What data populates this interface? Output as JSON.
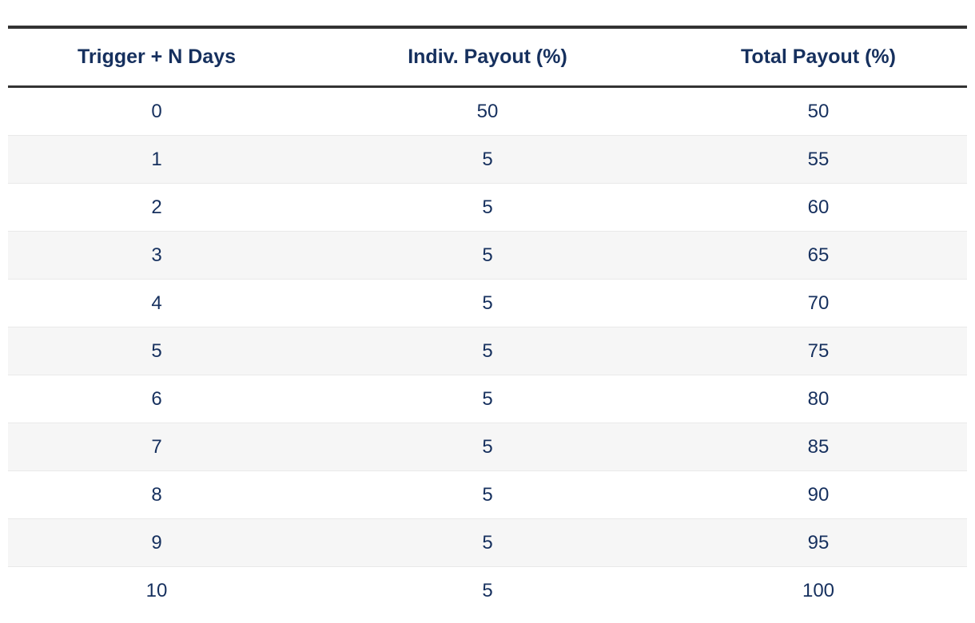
{
  "chart_data": {
    "type": "table",
    "title": "",
    "columns": [
      "Trigger + N Days",
      "Indiv. Payout (%)",
      "Total Payout (%)"
    ],
    "rows": [
      [
        "0",
        "50",
        "50"
      ],
      [
        "1",
        "5",
        "55"
      ],
      [
        "2",
        "5",
        "60"
      ],
      [
        "3",
        "5",
        "65"
      ],
      [
        "4",
        "5",
        "70"
      ],
      [
        "5",
        "5",
        "75"
      ],
      [
        "6",
        "5",
        "80"
      ],
      [
        "7",
        "5",
        "85"
      ],
      [
        "8",
        "5",
        "90"
      ],
      [
        "9",
        "5",
        "95"
      ],
      [
        "10",
        "5",
        "100"
      ]
    ],
    "layout_hints": {
      "zebra_striping": true,
      "vertical_gridlines": false,
      "header_rule_top": true,
      "header_rule_bottom": true
    }
  },
  "colors": {
    "header_text": "#16305e",
    "body_text": "#16305e",
    "rule_dark": "#333333",
    "stripe": "#f6f6f6",
    "row_divider": "#e9e9e9",
    "background": "#ffffff"
  }
}
